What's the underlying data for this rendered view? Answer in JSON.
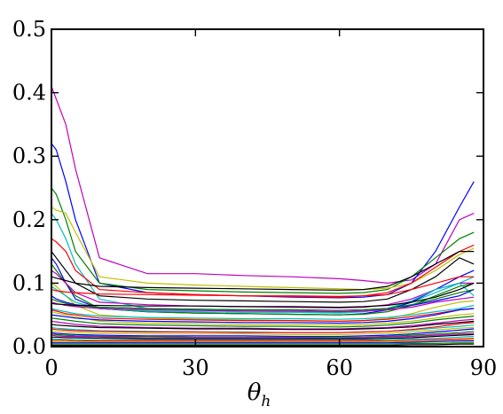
{
  "chart_data": {
    "type": "line",
    "title": "",
    "xlabel": "θ",
    "xlabel_subscript": "h",
    "ylabel": "",
    "xlim": [
      0,
      90
    ],
    "ylim": [
      0,
      0.5
    ],
    "xticks": [
      0,
      30,
      60,
      90
    ],
    "xtick_labels": [
      "0",
      "30",
      "60",
      "90"
    ],
    "yticks": [
      0,
      0.1,
      0.2,
      0.3,
      0.4,
      0.5
    ],
    "ytick_labels": [
      "0.0",
      "0.1",
      "0.2",
      "0.3",
      "0.4",
      "0.5"
    ],
    "grid": false,
    "legend": "none",
    "x": [
      0,
      1,
      3,
      5,
      10,
      20,
      30,
      40,
      50,
      60,
      65,
      70,
      75,
      80,
      85,
      88
    ],
    "series": [
      {
        "color": "#bf00bf",
        "values": [
          0.41,
          0.39,
          0.35,
          0.28,
          0.14,
          0.115,
          0.115,
          0.112,
          0.11,
          0.107,
          0.104,
          0.1,
          0.105,
          0.13,
          0.2,
          0.21
        ]
      },
      {
        "color": "#0000ff",
        "values": [
          0.32,
          0.31,
          0.26,
          0.2,
          0.1,
          0.085,
          0.082,
          0.08,
          0.078,
          0.077,
          0.078,
          0.082,
          0.1,
          0.15,
          0.22,
          0.26
        ]
      },
      {
        "color": "#008000",
        "values": [
          0.25,
          0.24,
          0.2,
          0.15,
          0.1,
          0.09,
          0.088,
          0.086,
          0.085,
          0.084,
          0.085,
          0.09,
          0.11,
          0.14,
          0.17,
          0.18
        ]
      },
      {
        "color": "#bfbf00",
        "values": [
          0.22,
          0.215,
          0.21,
          0.18,
          0.11,
          0.1,
          0.097,
          0.095,
          0.093,
          0.091,
          0.09,
          0.092,
          0.1,
          0.12,
          0.145,
          0.155
        ]
      },
      {
        "color": "#00bfbf",
        "values": [
          0.21,
          0.2,
          0.17,
          0.13,
          0.075,
          0.06,
          0.058,
          0.056,
          0.055,
          0.054,
          0.055,
          0.06,
          0.07,
          0.085,
          0.1,
          0.11
        ]
      },
      {
        "color": "#ff0000",
        "values": [
          0.17,
          0.165,
          0.15,
          0.12,
          0.09,
          0.085,
          0.082,
          0.08,
          0.079,
          0.078,
          0.08,
          0.085,
          0.1,
          0.125,
          0.15,
          0.16
        ]
      },
      {
        "color": "#000000",
        "values": [
          0.15,
          0.14,
          0.12,
          0.1,
          0.08,
          0.075,
          0.073,
          0.072,
          0.071,
          0.07,
          0.071,
          0.075,
          0.09,
          0.11,
          0.14,
          0.13
        ]
      },
      {
        "color": "#0000ff",
        "values": [
          0.14,
          0.13,
          0.1,
          0.075,
          0.06,
          0.055,
          0.053,
          0.052,
          0.051,
          0.05,
          0.052,
          0.058,
          0.07,
          0.09,
          0.11,
          0.12
        ]
      },
      {
        "color": "#008000",
        "values": [
          0.13,
          0.12,
          0.1,
          0.08,
          0.06,
          0.055,
          0.053,
          0.052,
          0.051,
          0.05,
          0.051,
          0.055,
          0.065,
          0.08,
          0.095,
          0.1
        ]
      },
      {
        "color": "#bf00bf",
        "values": [
          0.12,
          0.115,
          0.1,
          0.085,
          0.07,
          0.066,
          0.064,
          0.063,
          0.062,
          0.061,
          0.062,
          0.066,
          0.075,
          0.09,
          0.1,
          0.1
        ]
      },
      {
        "color": "#000000",
        "values": [
          0.11,
          0.108,
          0.104,
          0.1,
          0.095,
          0.093,
          0.092,
          0.091,
          0.09,
          0.089,
          0.09,
          0.095,
          0.11,
          0.13,
          0.15,
          0.15
        ]
      },
      {
        "color": "#bfbf00",
        "values": [
          0.1,
          0.095,
          0.08,
          0.065,
          0.05,
          0.045,
          0.043,
          0.042,
          0.041,
          0.04,
          0.041,
          0.044,
          0.052,
          0.062,
          0.07,
          0.072
        ]
      },
      {
        "color": "#00bfbf",
        "values": [
          0.095,
          0.09,
          0.08,
          0.07,
          0.06,
          0.056,
          0.055,
          0.054,
          0.054,
          0.053,
          0.055,
          0.06,
          0.072,
          0.09,
          0.1,
          0.08
        ]
      },
      {
        "color": "#ff0000",
        "values": [
          0.09,
          0.088,
          0.086,
          0.085,
          0.083,
          0.082,
          0.081,
          0.08,
          0.08,
          0.079,
          0.08,
          0.082,
          0.09,
          0.1,
          0.11,
          0.11
        ]
      },
      {
        "color": "#0000ff",
        "values": [
          0.08,
          0.075,
          0.07,
          0.066,
          0.062,
          0.06,
          0.059,
          0.058,
          0.058,
          0.057,
          0.058,
          0.06,
          0.065,
          0.072,
          0.08,
          0.09
        ]
      },
      {
        "color": "#008000",
        "values": [
          0.075,
          0.072,
          0.068,
          0.065,
          0.062,
          0.06,
          0.059,
          0.058,
          0.058,
          0.057,
          0.058,
          0.06,
          0.066,
          0.075,
          0.085,
          0.09
        ]
      },
      {
        "color": "#bf00bf",
        "values": [
          0.07,
          0.068,
          0.065,
          0.063,
          0.06,
          0.058,
          0.057,
          0.056,
          0.056,
          0.055,
          0.056,
          0.058,
          0.062,
          0.07,
          0.075,
          0.078
        ]
      },
      {
        "color": "#000000",
        "values": [
          0.068,
          0.067,
          0.066,
          0.065,
          0.065,
          0.064,
          0.064,
          0.063,
          0.063,
          0.062,
          0.063,
          0.065,
          0.07,
          0.078,
          0.09,
          0.1
        ]
      },
      {
        "color": "#00bfbf",
        "values": [
          0.06,
          0.058,
          0.055,
          0.052,
          0.048,
          0.046,
          0.045,
          0.044,
          0.044,
          0.043,
          0.044,
          0.046,
          0.05,
          0.055,
          0.06,
          0.065
        ]
      },
      {
        "color": "#ff0000",
        "values": [
          0.058,
          0.056,
          0.052,
          0.05,
          0.045,
          0.043,
          0.042,
          0.041,
          0.041,
          0.04,
          0.041,
          0.043,
          0.047,
          0.052,
          0.058,
          0.06
        ]
      },
      {
        "color": "#bfbf00",
        "values": [
          0.055,
          0.053,
          0.05,
          0.047,
          0.04,
          0.037,
          0.036,
          0.035,
          0.035,
          0.034,
          0.035,
          0.037,
          0.04,
          0.045,
          0.05,
          0.052
        ]
      },
      {
        "color": "#0000ff",
        "values": [
          0.05,
          0.049,
          0.047,
          0.045,
          0.042,
          0.04,
          0.039,
          0.038,
          0.038,
          0.037,
          0.038,
          0.04,
          0.044,
          0.05,
          0.058,
          0.06
        ]
      },
      {
        "color": "#008000",
        "values": [
          0.045,
          0.044,
          0.042,
          0.04,
          0.036,
          0.034,
          0.033,
          0.032,
          0.032,
          0.031,
          0.032,
          0.034,
          0.037,
          0.042,
          0.046,
          0.048
        ]
      },
      {
        "color": "#bf00bf",
        "values": [
          0.04,
          0.039,
          0.037,
          0.035,
          0.032,
          0.03,
          0.029,
          0.029,
          0.028,
          0.028,
          0.029,
          0.03,
          0.033,
          0.037,
          0.041,
          0.043
        ]
      },
      {
        "color": "#000000",
        "values": [
          0.035,
          0.034,
          0.033,
          0.032,
          0.03,
          0.029,
          0.028,
          0.028,
          0.027,
          0.027,
          0.028,
          0.029,
          0.031,
          0.035,
          0.038,
          0.04
        ]
      },
      {
        "color": "#00bfbf",
        "values": [
          0.03,
          0.029,
          0.028,
          0.027,
          0.025,
          0.024,
          0.023,
          0.023,
          0.022,
          0.022,
          0.023,
          0.024,
          0.026,
          0.029,
          0.032,
          0.034
        ]
      },
      {
        "color": "#ff0000",
        "values": [
          0.028,
          0.027,
          0.026,
          0.025,
          0.024,
          0.023,
          0.023,
          0.022,
          0.022,
          0.022,
          0.023,
          0.024,
          0.027,
          0.031,
          0.036,
          0.038
        ]
      },
      {
        "color": "#bfbf00",
        "values": [
          0.025,
          0.024,
          0.023,
          0.022,
          0.021,
          0.02,
          0.02,
          0.02,
          0.019,
          0.019,
          0.02,
          0.021,
          0.023,
          0.026,
          0.029,
          0.03
        ]
      },
      {
        "color": "#0000ff",
        "values": [
          0.022,
          0.021,
          0.02,
          0.019,
          0.018,
          0.017,
          0.017,
          0.017,
          0.016,
          0.016,
          0.017,
          0.018,
          0.02,
          0.023,
          0.026,
          0.028
        ]
      },
      {
        "color": "#008000",
        "values": [
          0.02,
          0.019,
          0.018,
          0.017,
          0.016,
          0.016,
          0.015,
          0.015,
          0.015,
          0.015,
          0.015,
          0.016,
          0.018,
          0.02,
          0.022,
          0.024
        ]
      },
      {
        "color": "#bf00bf",
        "values": [
          0.018,
          0.017,
          0.016,
          0.016,
          0.015,
          0.014,
          0.014,
          0.014,
          0.014,
          0.013,
          0.014,
          0.015,
          0.016,
          0.018,
          0.02,
          0.021
        ]
      },
      {
        "color": "#000000",
        "values": [
          0.015,
          0.015,
          0.014,
          0.014,
          0.013,
          0.012,
          0.012,
          0.012,
          0.012,
          0.012,
          0.012,
          0.013,
          0.014,
          0.016,
          0.018,
          0.019
        ]
      },
      {
        "color": "#00bfbf",
        "values": [
          0.012,
          0.012,
          0.011,
          0.011,
          0.01,
          0.01,
          0.01,
          0.01,
          0.01,
          0.01,
          0.01,
          0.011,
          0.012,
          0.013,
          0.015,
          0.016
        ]
      },
      {
        "color": "#ff0000",
        "values": [
          0.01,
          0.01,
          0.01,
          0.009,
          0.009,
          0.009,
          0.009,
          0.009,
          0.009,
          0.009,
          0.009,
          0.009,
          0.01,
          0.011,
          0.012,
          0.013
        ]
      },
      {
        "color": "#bfbf00",
        "values": [
          0.008,
          0.008,
          0.008,
          0.008,
          0.007,
          0.007,
          0.007,
          0.007,
          0.007,
          0.007,
          0.007,
          0.008,
          0.008,
          0.009,
          0.01,
          0.011
        ]
      },
      {
        "color": "#0000ff",
        "values": [
          0.006,
          0.006,
          0.006,
          0.006,
          0.006,
          0.006,
          0.006,
          0.006,
          0.006,
          0.006,
          0.006,
          0.006,
          0.007,
          0.008,
          0.009,
          0.009
        ]
      },
      {
        "color": "#008000",
        "values": [
          0.004,
          0.004,
          0.004,
          0.004,
          0.004,
          0.004,
          0.004,
          0.004,
          0.004,
          0.004,
          0.004,
          0.004,
          0.005,
          0.005,
          0.006,
          0.006
        ]
      },
      {
        "color": "#000000",
        "values": [
          0.002,
          0.002,
          0.002,
          0.002,
          0.002,
          0.002,
          0.002,
          0.002,
          0.002,
          0.002,
          0.002,
          0.002,
          0.003,
          0.003,
          0.004,
          0.004
        ]
      }
    ]
  }
}
